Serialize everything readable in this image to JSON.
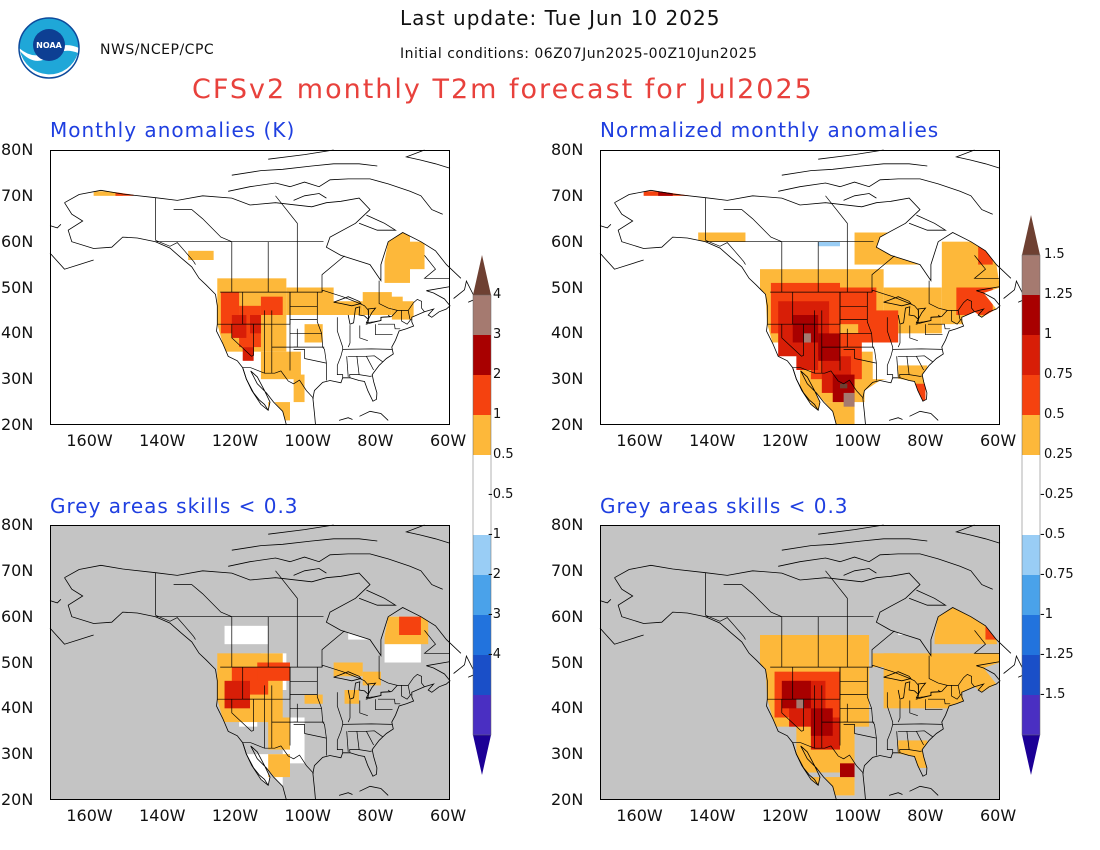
{
  "header": {
    "last_update": "Last update: Tue Jun 10 2025",
    "initial_conditions": "Initial conditions: 06Z07Jun2025-00Z10Jun2025",
    "agency": "NWS/NCEP/CPC",
    "title": "CFSv2 monthly T2m forecast for Jul2025",
    "logo_text": "NOAA"
  },
  "panels": [
    {
      "title": "Monthly anomalies (K)",
      "grey_background": false
    },
    {
      "title": "Normalized monthly anomalies",
      "grey_background": false
    },
    {
      "title": "Grey areas skills < 0.3",
      "grey_background": true
    },
    {
      "title": "Grey areas skills < 0.3",
      "grey_background": true
    }
  ],
  "axes": {
    "lat_labels": [
      "80N",
      "70N",
      "60N",
      "50N",
      "40N",
      "30N",
      "20N"
    ],
    "lon_labels": [
      "160W",
      "140W",
      "120W",
      "100W",
      "80W",
      "60W"
    ]
  },
  "colorbars": {
    "anomaly_labels": [
      "4",
      "3",
      "2",
      "1",
      "0.5",
      "-0.5",
      "-1",
      "-2",
      "-3",
      "-4"
    ],
    "normalized_labels": [
      "1.5",
      "1.25",
      "1",
      "0.75",
      "0.5",
      "0.25",
      "-0.25",
      "-0.5",
      "-0.75",
      "-1",
      "-1.25",
      "-1.5"
    ]
  },
  "colors": {
    "grey_mask": "#c4c4c4",
    "light_orange": "#fdb83a",
    "orange_red": "#f5420f",
    "red": "#d81e07",
    "dark_red": "#a80000",
    "rosy_brown": "#a57a70",
    "brown": "#6e4032",
    "light_blue": "#99cdf5",
    "sky_blue": "#4aa2ea",
    "blue": "#2273dd",
    "dark_blue": "#1a4fc8",
    "indigo": "#4a2fc2",
    "navy": "#1c0096"
  }
}
